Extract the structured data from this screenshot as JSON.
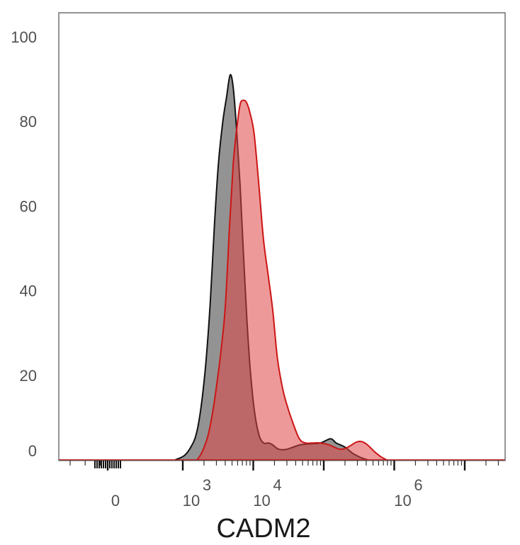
{
  "chart_data": {
    "type": "area",
    "x_scale": "biexponential",
    "xlabel": "CADM2",
    "ylabel": "",
    "ylim": [
      0,
      100
    ],
    "yticks": [
      "0",
      "20",
      "40",
      "60",
      "80",
      "100"
    ],
    "xticks": [
      {
        "base": "0",
        "exp": "",
        "value": 0
      },
      {
        "base": "10",
        "exp": "3",
        "value": 1000
      },
      {
        "base": "10",
        "exp": "4",
        "value": 10000
      },
      {
        "base": "10",
        "exp": "6",
        "value": 1000000
      }
    ],
    "series": [
      {
        "color": "#808080",
        "edge": "#111111",
        "opacity": 0.85,
        "points": [
          [
            900,
            0
          ],
          [
            1050,
            1
          ],
          [
            1300,
            3
          ],
          [
            1550,
            6
          ],
          [
            1800,
            12
          ],
          [
            2100,
            22
          ],
          [
            2450,
            37
          ],
          [
            2800,
            55
          ],
          [
            3200,
            70
          ],
          [
            3700,
            80
          ],
          [
            4200,
            86
          ],
          [
            4700,
            91
          ],
          [
            5200,
            88
          ],
          [
            5800,
            78
          ],
          [
            6500,
            65
          ],
          [
            7200,
            50
          ],
          [
            8000,
            35
          ],
          [
            9000,
            22
          ],
          [
            10300,
            12
          ],
          [
            12000,
            6
          ],
          [
            14000,
            4
          ],
          [
            16500,
            4
          ],
          [
            19000,
            3.5
          ],
          [
            23000,
            2.5
          ],
          [
            30000,
            2.5
          ],
          [
            45000,
            3.5
          ],
          [
            65000,
            3.8
          ],
          [
            90000,
            4
          ],
          [
            125000,
            5
          ],
          [
            150000,
            4
          ],
          [
            200000,
            3
          ],
          [
            260000,
            1.5
          ],
          [
            340000,
            0.5
          ],
          [
            420000,
            0
          ]
        ]
      },
      {
        "color": "#e04646",
        "edge": "#cc1515",
        "opacity": 0.55,
        "points": [
          [
            1600,
            0
          ],
          [
            1900,
            2
          ],
          [
            2300,
            6
          ],
          [
            2700,
            12
          ],
          [
            3100,
            19
          ],
          [
            3500,
            26
          ],
          [
            4000,
            36
          ],
          [
            4600,
            55
          ],
          [
            5200,
            70
          ],
          [
            5800,
            78
          ],
          [
            6500,
            84
          ],
          [
            7200,
            85
          ],
          [
            8000,
            84.5
          ],
          [
            9000,
            82
          ],
          [
            10300,
            77
          ],
          [
            12000,
            65
          ],
          [
            14000,
            52
          ],
          [
            16500,
            43
          ],
          [
            19000,
            35
          ],
          [
            22000,
            24
          ],
          [
            26000,
            17
          ],
          [
            30000,
            13
          ],
          [
            36000,
            9
          ],
          [
            45000,
            5
          ],
          [
            55000,
            4
          ],
          [
            70000,
            4
          ],
          [
            90000,
            4
          ],
          [
            120000,
            3.5
          ],
          [
            170000,
            2.5
          ],
          [
            220000,
            3
          ],
          [
            290000,
            4.2
          ],
          [
            350000,
            4.3
          ],
          [
            420000,
            3.5
          ],
          [
            520000,
            2
          ],
          [
            650000,
            0.7
          ],
          [
            780000,
            0
          ]
        ]
      }
    ]
  }
}
